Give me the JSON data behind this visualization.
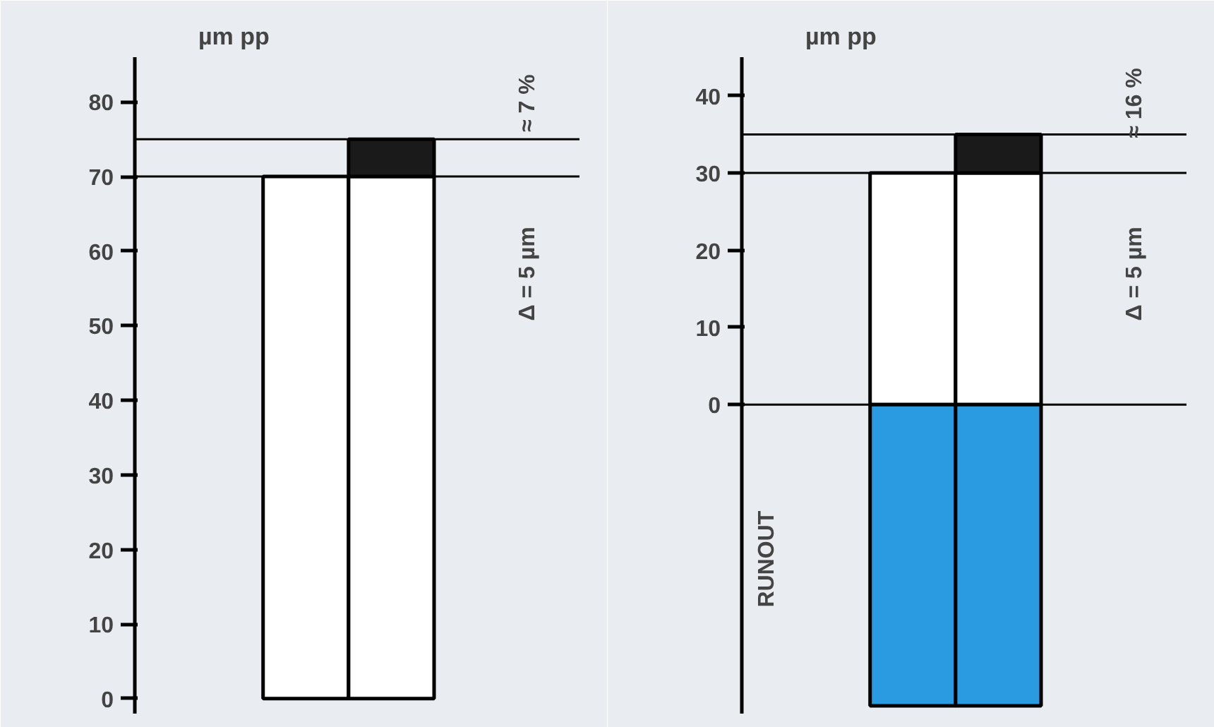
{
  "chart_data": [
    {
      "type": "bar",
      "stacked": true,
      "categories": [
        null,
        null
      ],
      "ylabel": "µm pp",
      "ylim": [
        -2,
        86
      ],
      "yticks": [
        0,
        10,
        20,
        30,
        40,
        50,
        60,
        70,
        80
      ],
      "grid": false,
      "tick_labels": "y",
      "series": [
        {
          "color": "#ffffff",
          "values": [
            70,
            70
          ]
        },
        {
          "color": "#1a1a1a",
          "values": [
            0,
            5
          ]
        }
      ],
      "ref_lines": [
        {
          "axis": "y",
          "value": 70,
          "color": "#000000"
        },
        {
          "axis": "y",
          "value": 75,
          "color": "#000000"
        }
      ],
      "annotations": [
        "Δ = 5 µm",
        "≈ 7 %"
      ]
    },
    {
      "type": "bar",
      "stacked": true,
      "categories": [
        null,
        null
      ],
      "ylabel": "µm pp",
      "ylim": [
        -40,
        45
      ],
      "yticks": [
        0,
        10,
        20,
        30,
        40
      ],
      "grid": false,
      "tick_labels": "y",
      "series": [
        {
          "color": "#ffffff",
          "values": [
            30,
            30
          ]
        },
        {
          "color": "#1a1a1a",
          "values": [
            0,
            5
          ]
        },
        {
          "color": "#2a9be0",
          "values": [
            -39,
            -39
          ]
        }
      ],
      "ref_lines": [
        {
          "axis": "y",
          "value": 0,
          "color": "#000000"
        },
        {
          "axis": "y",
          "value": 30,
          "color": "#000000"
        },
        {
          "axis": "y",
          "value": 35,
          "color": "#000000"
        }
      ],
      "annotations": [
        "Δ = 5 µm",
        "≈ 16 %",
        "RUNOUT"
      ]
    }
  ]
}
